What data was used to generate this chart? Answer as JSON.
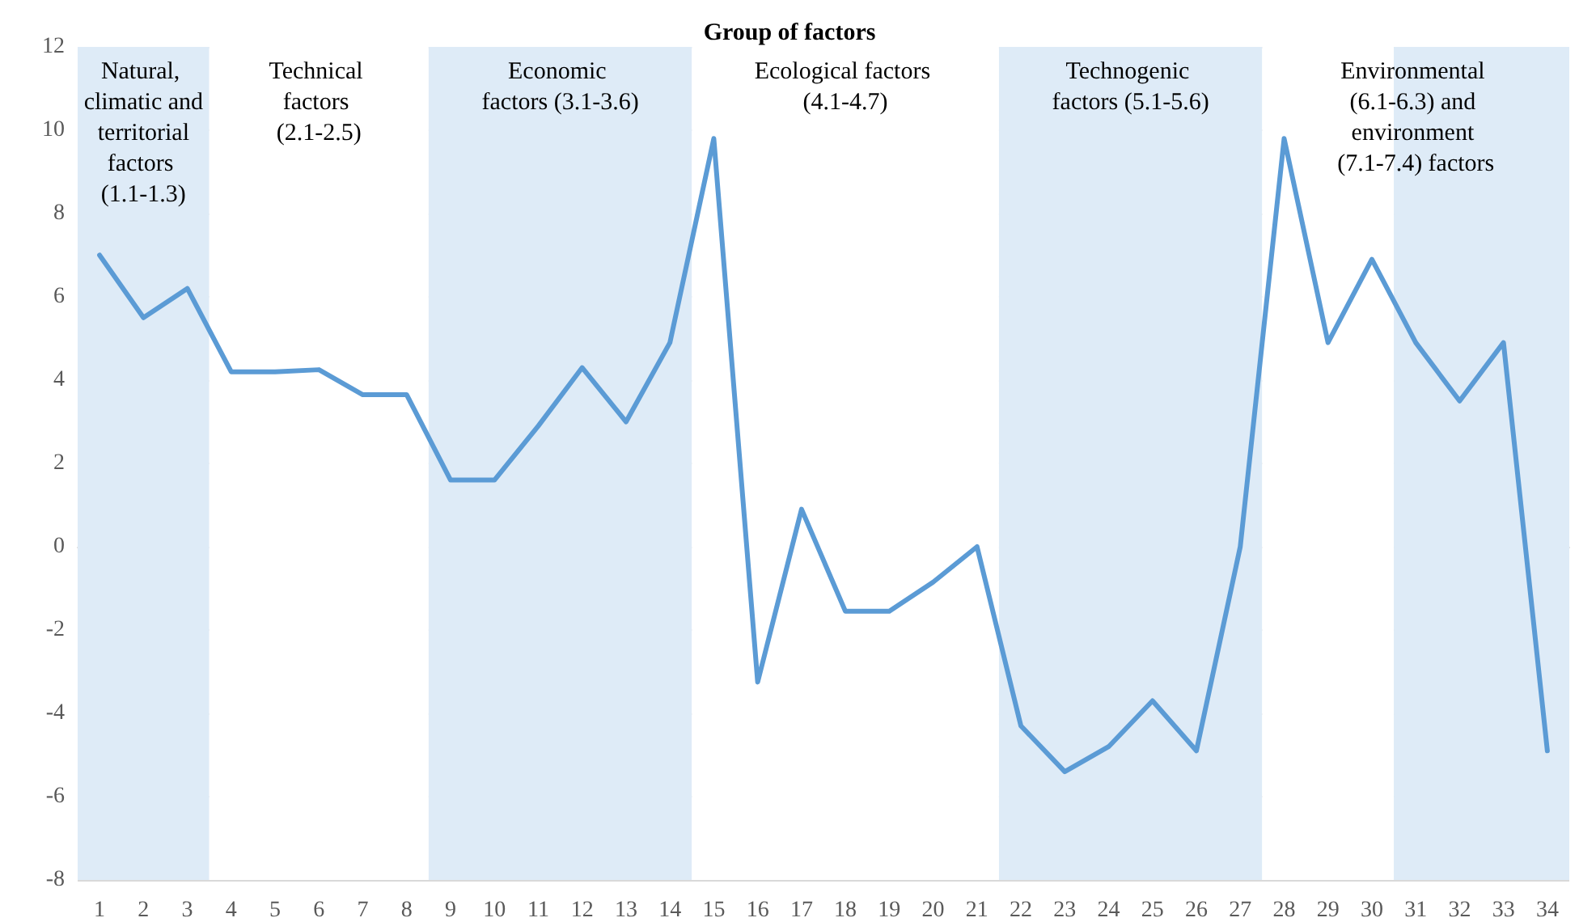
{
  "chart_data": {
    "type": "line",
    "title": "Group of factors",
    "x": [
      1,
      2,
      3,
      4,
      5,
      6,
      7,
      8,
      9,
      10,
      11,
      12,
      13,
      14,
      15,
      16,
      17,
      18,
      19,
      20,
      21,
      22,
      23,
      24,
      25,
      26,
      27,
      28,
      29,
      30,
      31,
      32,
      33,
      34
    ],
    "series": [
      {
        "color": "#5b9bd5",
        "values": [
          7.0,
          5.5,
          6.2,
          4.2,
          4.2,
          4.25,
          3.65,
          3.65,
          1.6,
          1.6,
          2.9,
          4.3,
          3.0,
          4.9,
          9.8,
          -3.25,
          0.9,
          -1.55,
          -1.55,
          -0.85,
          0,
          -4.3,
          -5.4,
          -4.8,
          -3.7,
          -4.9,
          0,
          9.8,
          4.9,
          6.9,
          4.9,
          3.5,
          4.9,
          -4.9
        ]
      }
    ],
    "xlim": [
      0.5,
      34.5
    ],
    "xticks": [
      1,
      2,
      3,
      4,
      5,
      6,
      7,
      8,
      9,
      10,
      11,
      12,
      13,
      14,
      15,
      16,
      17,
      18,
      19,
      20,
      21,
      22,
      23,
      24,
      25,
      26,
      27,
      28,
      29,
      30,
      31,
      32,
      33,
      34
    ],
    "ylim": [
      -8,
      12
    ],
    "yticks": [
      -8,
      -6,
      -4,
      -2,
      0,
      2,
      4,
      6,
      8,
      10,
      12
    ],
    "grid": "y",
    "marker": "none",
    "line_style": "solid",
    "bands": [
      {
        "axis": "x",
        "from": 0.5,
        "to": 3.5,
        "label": "Natural, climatic and territorial factors (1.1-1.3)",
        "color": "#deebf7"
      },
      {
        "axis": "x",
        "from": 3.5,
        "to": 8.5,
        "label": "Technical factors (2.1-2.5)",
        "color": "#ffffff"
      },
      {
        "axis": "x",
        "from": 8.5,
        "to": 14.5,
        "label": "Economic factors (3.1-3.6)",
        "color": "#deebf7"
      },
      {
        "axis": "x",
        "from": 14.5,
        "to": 21.5,
        "label": "Ecological factors (4.1-4.7)",
        "color": "#ffffff"
      },
      {
        "axis": "x",
        "from": 21.5,
        "to": 27.5,
        "label": "Technogenic factors (5.1-5.6)",
        "color": "#deebf7"
      },
      {
        "axis": "x",
        "from": 27.5,
        "to": 30.5,
        "label": "Environmental (6.1-6.3) and environment (7.1-7.4) factors",
        "color": "#ffffff"
      },
      {
        "axis": "x",
        "from": 30.5,
        "to": 34.5,
        "color": "#deebf7"
      }
    ]
  }
}
